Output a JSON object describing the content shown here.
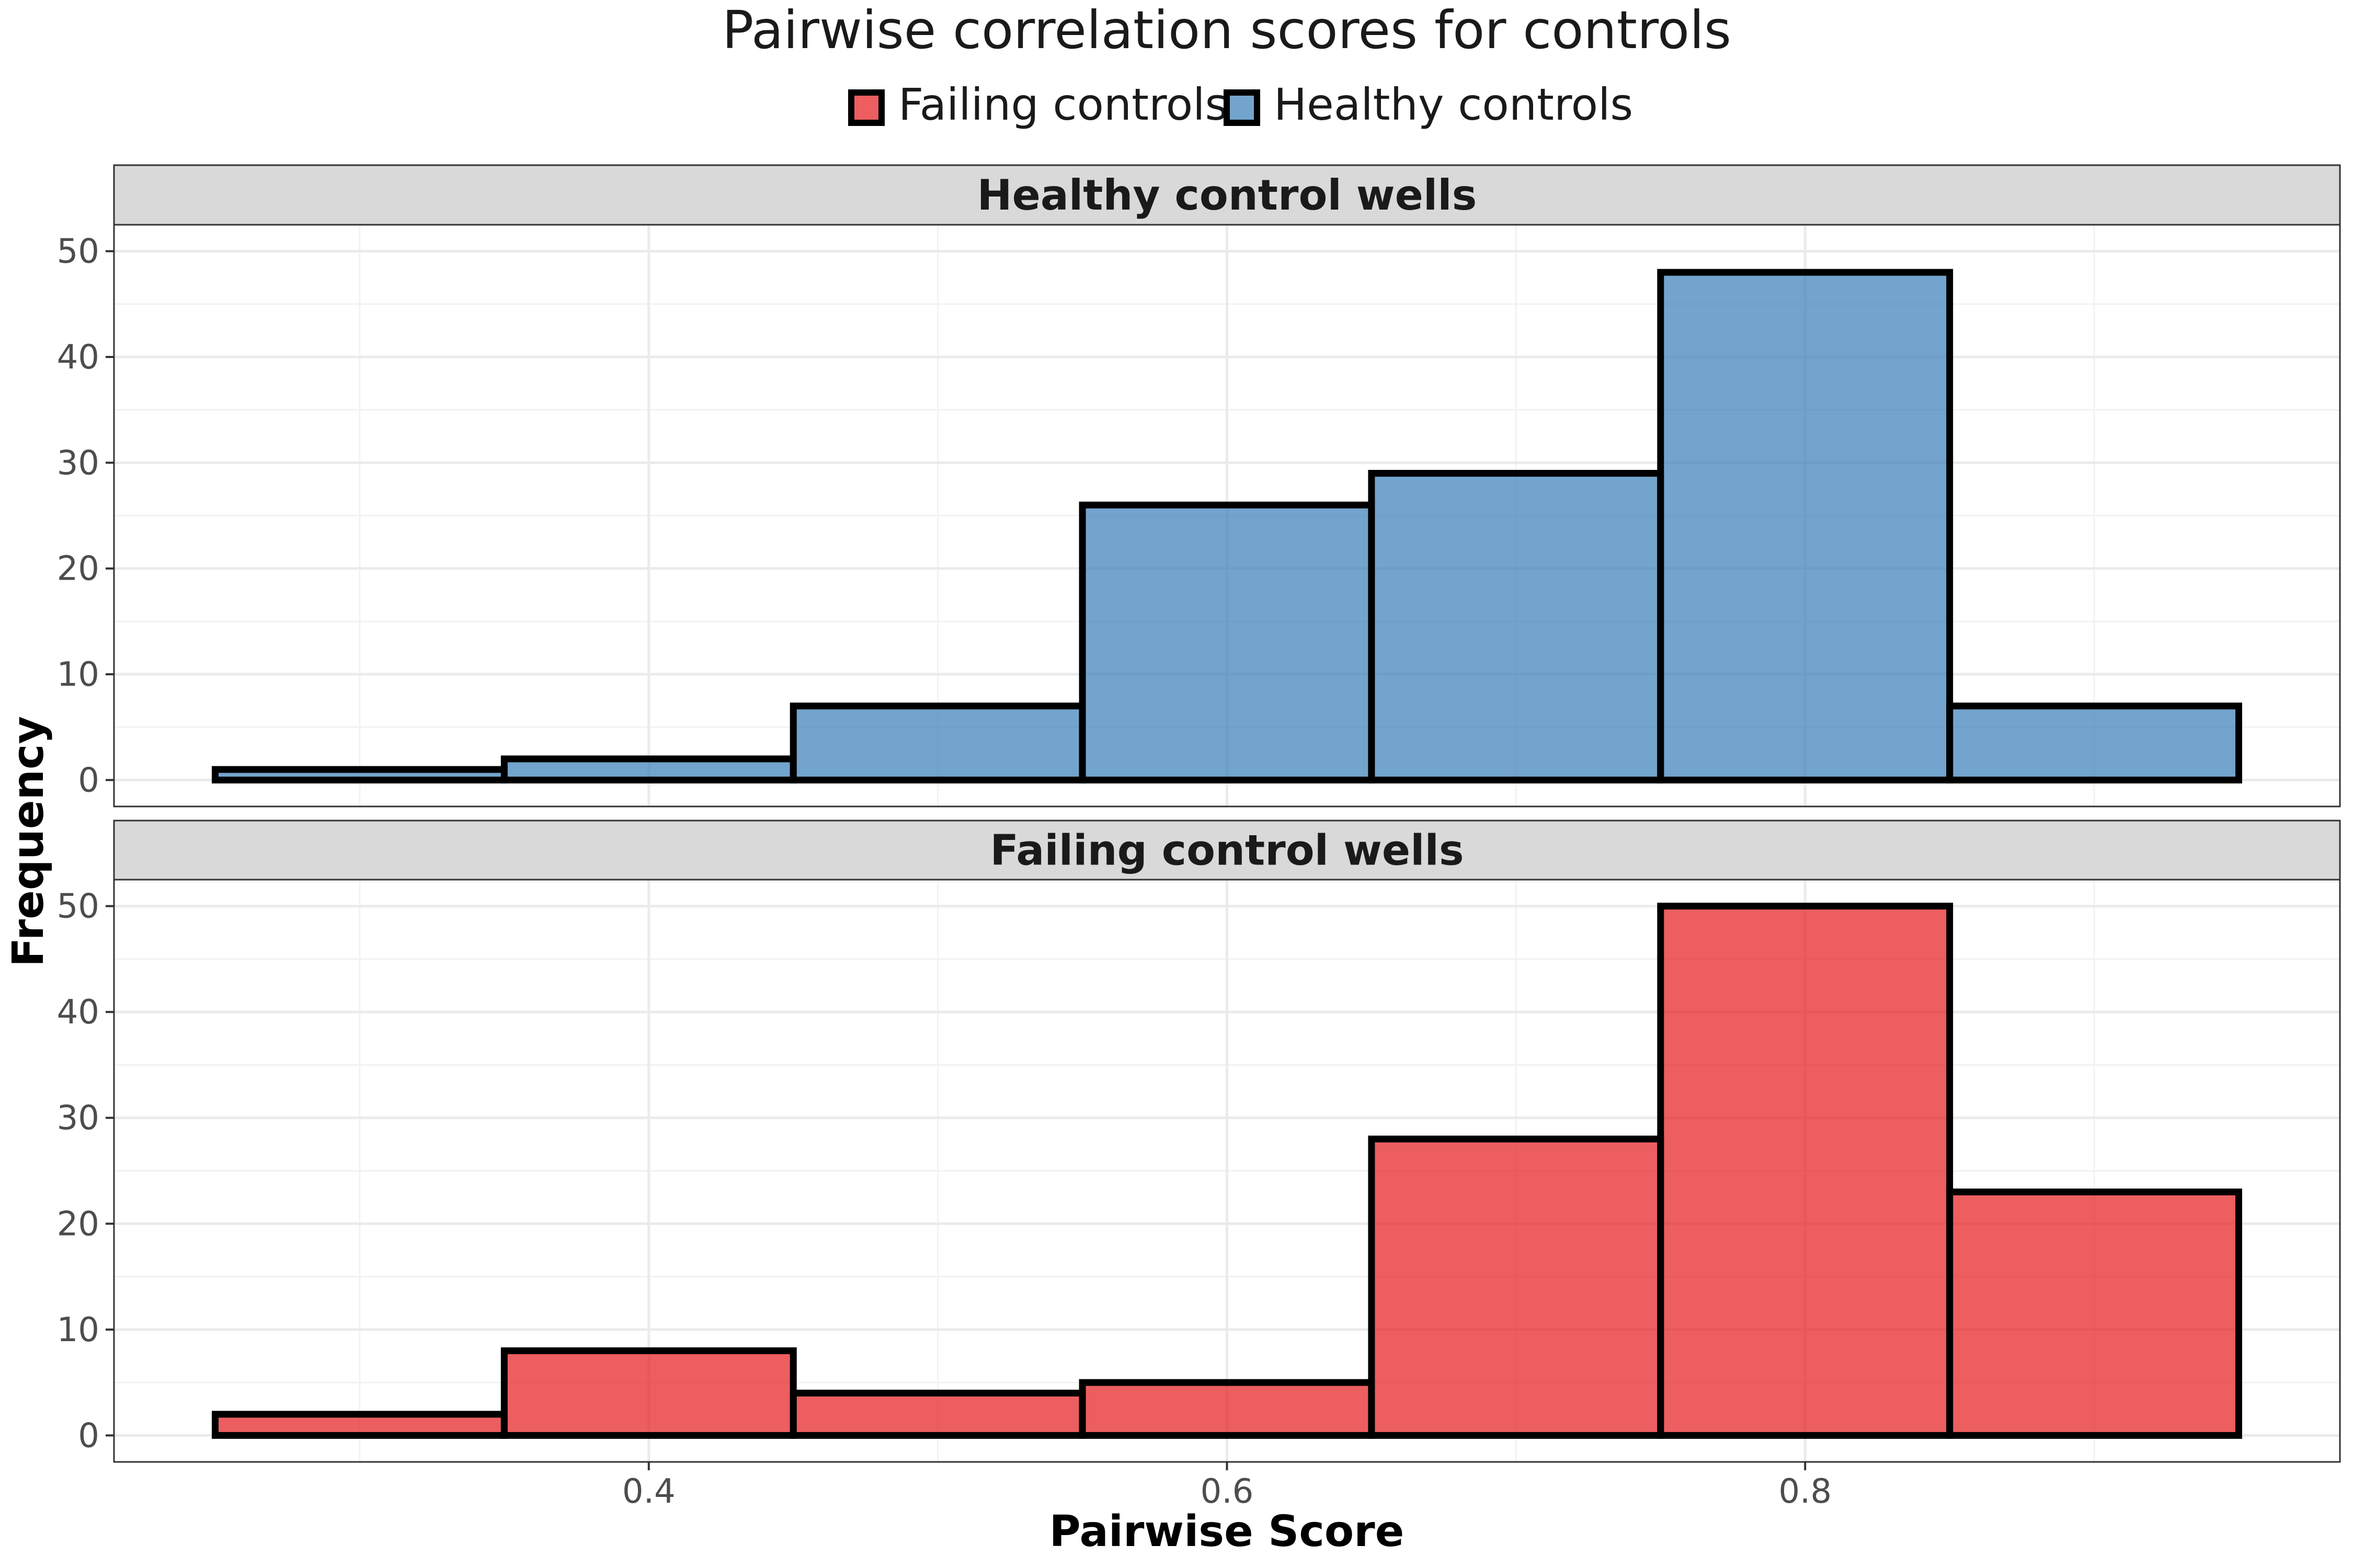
{
  "chart_data": {
    "type": "bar",
    "title": "Pairwise correlation scores for controls",
    "xlabel": "Pairwise Score",
    "ylabel": "Frequency",
    "legend": {
      "position": "top",
      "entries": [
        {
          "label": "Failing controls",
          "color": "#e41a1c"
        },
        {
          "label": "Healthy controls",
          "color": "#377eb8"
        }
      ]
    },
    "grid": true,
    "xlim": [
      0.215,
      0.985
    ],
    "ylim": [
      -2.5,
      52.5
    ],
    "x_ticks": [
      0.4,
      0.6,
      0.8
    ],
    "y_ticks": [
      0,
      10,
      20,
      30,
      40,
      50
    ],
    "bins": [
      [
        0.25,
        0.35
      ],
      [
        0.35,
        0.45
      ],
      [
        0.45,
        0.55
      ],
      [
        0.55,
        0.65
      ],
      [
        0.65,
        0.75
      ],
      [
        0.75,
        0.85
      ],
      [
        0.85,
        0.95
      ]
    ],
    "panels": [
      {
        "strip": "Healthy control wells",
        "series": "Healthy controls",
        "color": "#377eb8",
        "values": [
          1,
          2,
          7,
          26,
          29,
          48,
          7
        ]
      },
      {
        "strip": "Failing control wells",
        "series": "Failing controls",
        "color": "#e41a1c",
        "values": [
          2,
          8,
          4,
          5,
          28,
          50,
          23
        ]
      }
    ]
  }
}
